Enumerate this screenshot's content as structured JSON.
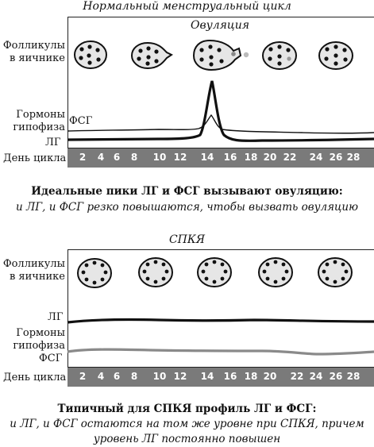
{
  "top": {
    "title": "Нормальный менструальный цикл",
    "follicles_label_line1": "Фолликулы",
    "follicles_label_line2": "в яичнике",
    "ovulation_label": "Овуляция",
    "hormones_label_line1": "Гормоны",
    "hormones_label_line2": "гипофиза",
    "fsh_label": "ФСГ",
    "lh_label": "ЛГ",
    "day_label": "День цикла",
    "days": [
      "2",
      "4",
      "6",
      "8",
      "10",
      "12",
      "14",
      "16",
      "18",
      "20",
      "22",
      "24",
      "26",
      "28"
    ],
    "caption_bold": "Идеальные пики ЛГ и ФСГ вызывают овуляцию:",
    "caption_italic": "и ЛГ, и ФСГ резко повышаются, чтобы вызвать овуляцию"
  },
  "bottom": {
    "title": "СПКЯ",
    "follicles_label_line1": "Фолликулы",
    "follicles_label_line2": "в яичнике",
    "lh_label": "ЛГ",
    "hormones_label_line1": "Гормоны",
    "hormones_label_line2": "гипофиза",
    "fsh_label": "ФСГ",
    "day_label": "День цикла",
    "days": [
      "2",
      "4",
      "6",
      "8",
      "10",
      "12",
      "14",
      "16",
      "18",
      "20",
      "22",
      "24",
      "26",
      "28"
    ],
    "caption_bold": "Типичный для СПКЯ профиль ЛГ и ФСГ:",
    "caption_italic_line1": "и ЛГ, и ФСГ остаются на том же уровне при СПКЯ, причем",
    "caption_italic_line2": "уровень ЛГ постоянно повышен"
  },
  "colors": {
    "lh_line": "#111111",
    "fsh_line_top": "#111111",
    "fsh_line_bottom": "#8a8a8a",
    "day_bar": "#7a7a7a",
    "ovary_fill": "#e6e6e6"
  }
}
